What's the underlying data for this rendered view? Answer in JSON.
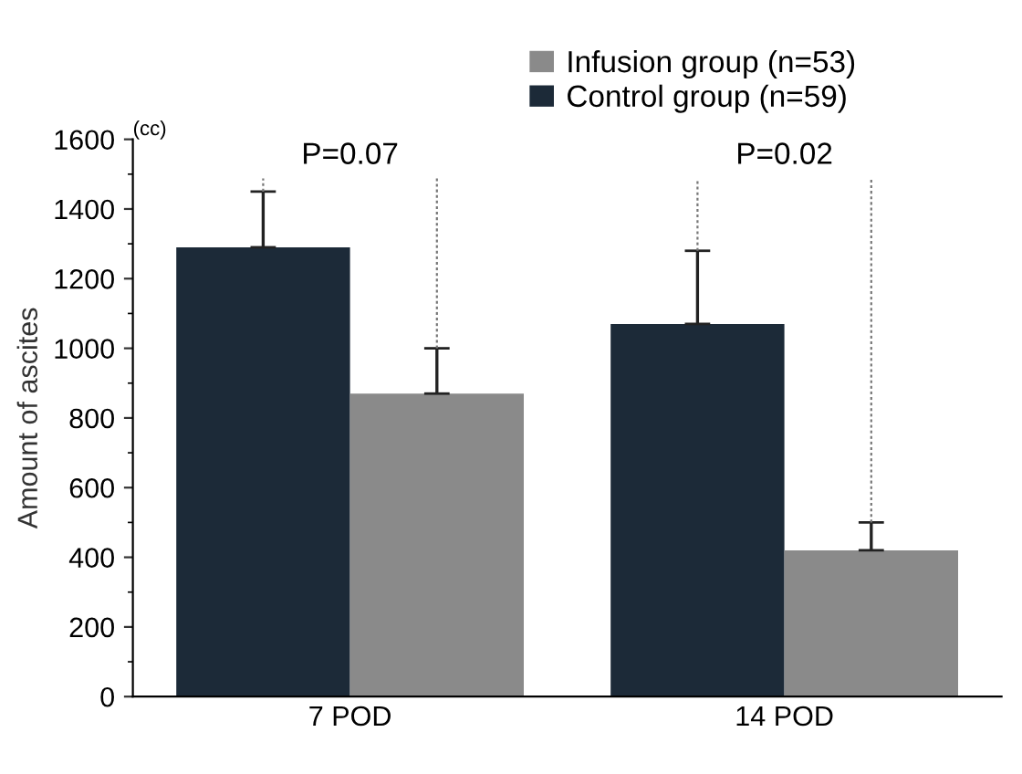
{
  "chart_data": {
    "type": "bar",
    "ylabel": "Amount of ascites",
    "categories": [
      "7 POD",
      "14 POD"
    ],
    "series": [
      {
        "name": "Control group (n=59)",
        "color": "#1c2a38",
        "values": [
          1290,
          1070
        ],
        "errors": [
          [
            1290,
            1450
          ],
          [
            1070,
            1280
          ]
        ]
      },
      {
        "name": "Infusion group (n=53)",
        "color": "#8a8a8a",
        "values": [
          870,
          420
        ],
        "errors": [
          [
            870,
            1000
          ],
          [
            420,
            500
          ]
        ]
      }
    ],
    "ylim": [
      0,
      1600
    ],
    "yticks": [
      0,
      200,
      400,
      600,
      800,
      1000,
      1200,
      1400,
      1600
    ],
    "annotations": [
      "(cc)",
      "P=0.07",
      "P=0.02"
    ],
    "legend": "top right",
    "grid": false
  }
}
